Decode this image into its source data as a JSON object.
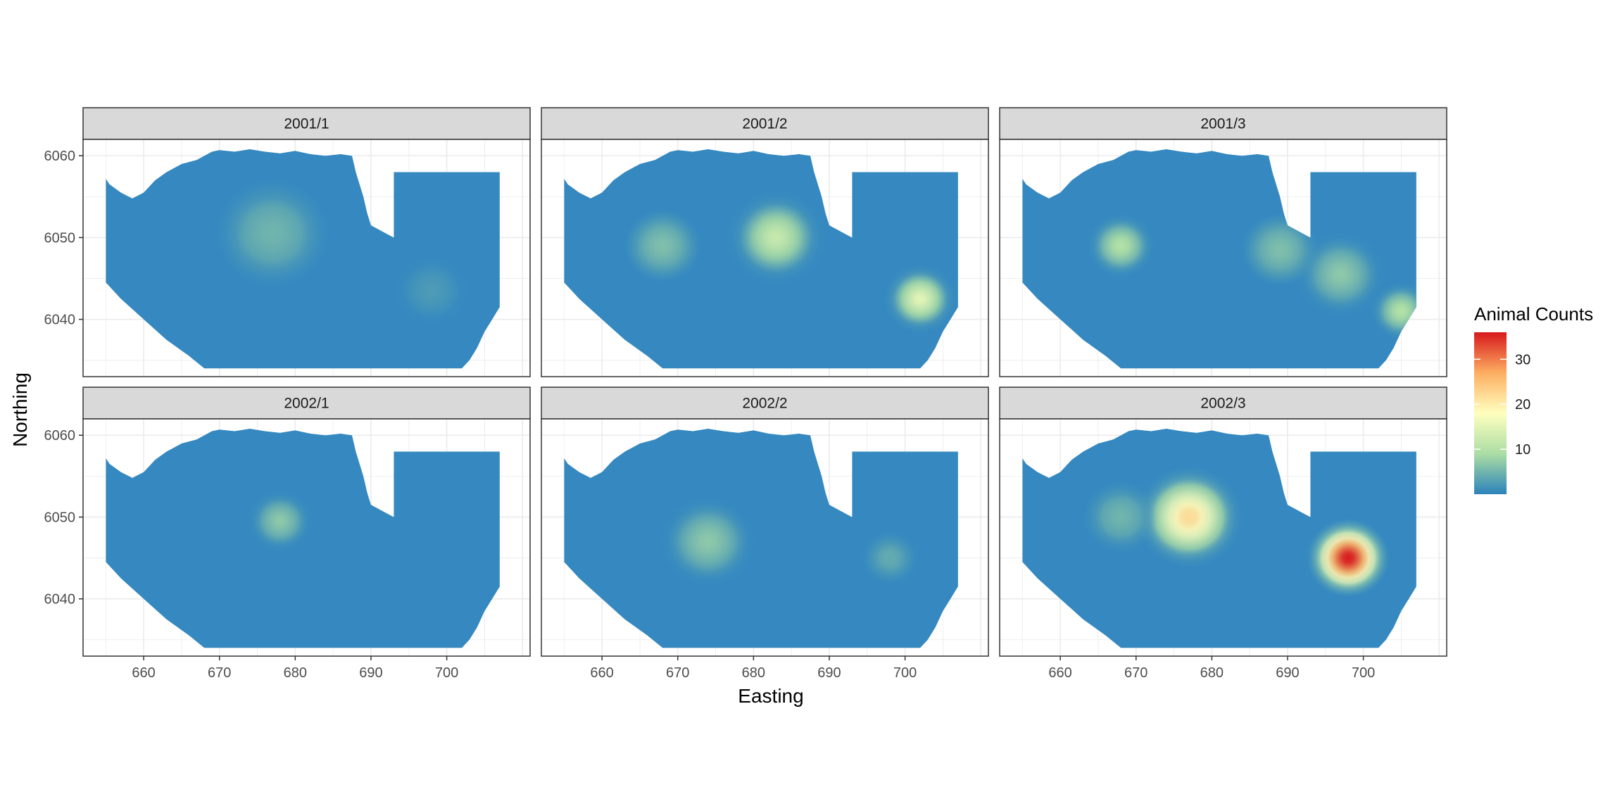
{
  "chart_data": {
    "type": "heatmap",
    "layout": "facet-grid-2x3",
    "xlabel": "Easting",
    "ylabel": "Northing",
    "xlim": [
      652,
      711
    ],
    "ylim": [
      6033,
      6062
    ],
    "x_ticks": [
      660,
      670,
      680,
      690,
      700
    ],
    "y_ticks": [
      6040,
      6050,
      6060
    ],
    "grid": true,
    "legend": {
      "title": "Animal Counts",
      "position": "right",
      "range": [
        0,
        36
      ],
      "ticks": [
        10,
        20,
        30
      ],
      "colors": [
        "#2b83ba",
        "#abdda4",
        "#ffffbf",
        "#fdae61",
        "#d7191c"
      ]
    },
    "region_color": "#3589c0",
    "panels": [
      {
        "label": "2001/1",
        "hotspots": [
          {
            "x": 677,
            "y": 6050.5,
            "peak": 5,
            "spread": 4.5
          },
          {
            "x": 698,
            "y": 6043.5,
            "peak": 3,
            "spread": 3.5
          }
        ]
      },
      {
        "label": "2001/2",
        "hotspots": [
          {
            "x": 683,
            "y": 6050,
            "peak": 12,
            "spread": 3
          },
          {
            "x": 668,
            "y": 6049,
            "peak": 6,
            "spread": 3
          },
          {
            "x": 702,
            "y": 6042.5,
            "peak": 15,
            "spread": 2.2
          }
        ]
      },
      {
        "label": "2001/3",
        "hotspots": [
          {
            "x": 668,
            "y": 6049,
            "peak": 10,
            "spread": 2.2
          },
          {
            "x": 689,
            "y": 6048.5,
            "peak": 6,
            "spread": 3
          },
          {
            "x": 697,
            "y": 6045.5,
            "peak": 7,
            "spread": 3
          },
          {
            "x": 705,
            "y": 6041,
            "peak": 10,
            "spread": 2
          }
        ]
      },
      {
        "label": "2002/1",
        "hotspots": [
          {
            "x": 678,
            "y": 6049.5,
            "peak": 7,
            "spread": 2.2
          }
        ]
      },
      {
        "label": "2002/2",
        "hotspots": [
          {
            "x": 674,
            "y": 6047,
            "peak": 7,
            "spread": 3.2
          },
          {
            "x": 698,
            "y": 6045,
            "peak": 4,
            "spread": 2.5
          }
        ]
      },
      {
        "label": "2002/3",
        "hotspots": [
          {
            "x": 677,
            "y": 6050,
            "peak": 22,
            "spread": 3.2
          },
          {
            "x": 668,
            "y": 6050,
            "peak": 5,
            "spread": 3
          },
          {
            "x": 698,
            "y": 6045,
            "peak": 36,
            "spread": 2.5
          }
        ]
      }
    ]
  }
}
